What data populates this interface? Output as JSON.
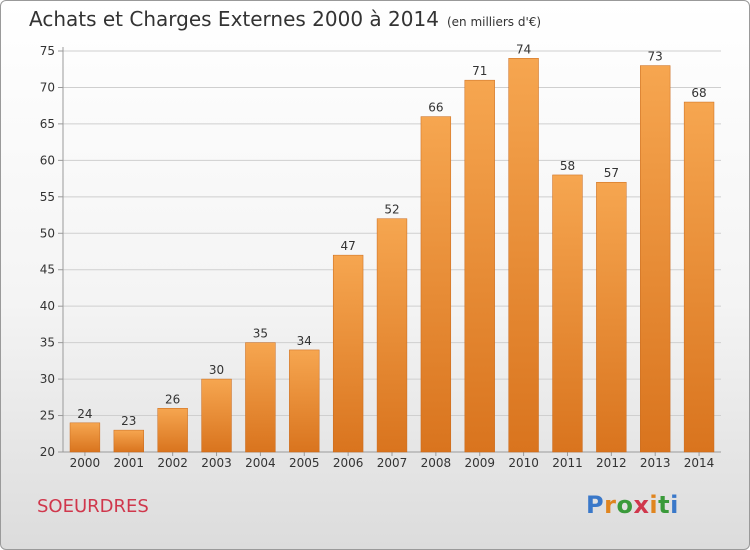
{
  "header": {
    "title": "Achats et Charges Externes 2000 à 2014",
    "subtitle": "(en milliers d'€)"
  },
  "commune": "SOEURDRES",
  "logo": {
    "text": "Proxiti",
    "letter_colors": [
      "#3a78c9",
      "#e0851f",
      "#3a9a3a",
      "#d0374c",
      "#e0851f",
      "#3a9a3a",
      "#3a78c9"
    ]
  },
  "colors": {
    "bar_top": "#f6a650",
    "bar_bottom": "#d9741e",
    "bar_stroke": "#c8681a",
    "grid": "#cfcfcf",
    "axis": "#9a9a9a"
  },
  "chart_data": {
    "type": "bar",
    "title": "Achats et Charges Externes 2000 à 2014",
    "subtitle": "(en milliers d'€)",
    "categories": [
      "2000",
      "2001",
      "2002",
      "2003",
      "2004",
      "2005",
      "2006",
      "2007",
      "2008",
      "2009",
      "2010",
      "2011",
      "2012",
      "2013",
      "2014"
    ],
    "values": [
      24,
      23,
      26,
      30,
      35,
      34,
      47,
      52,
      66,
      71,
      74,
      58,
      57,
      73,
      68
    ],
    "yticks": [
      20,
      25,
      30,
      35,
      40,
      45,
      50,
      55,
      60,
      65,
      70,
      75
    ],
    "ylim": [
      20,
      75
    ],
    "xlabel": "",
    "ylabel": "",
    "grid": true,
    "legend": "none"
  }
}
